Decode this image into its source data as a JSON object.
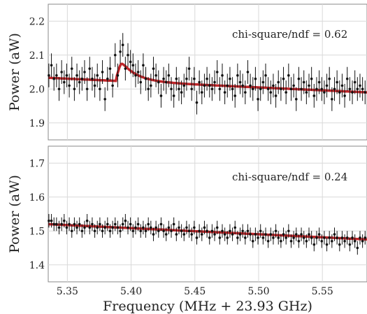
{
  "chart_data": [
    {
      "type": "scatter",
      "title": "",
      "xlabel": "",
      "ylabel": "Power (aW)",
      "xlim": [
        5.335,
        5.585
      ],
      "ylim": [
        1.85,
        2.25
      ],
      "yticks": [
        1.9,
        2.0,
        2.1,
        2.2
      ],
      "ytick_labels": [
        "1.9",
        "2.0",
        "2.1",
        "2.2"
      ],
      "xticks": [
        5.35,
        5.4,
        5.45,
        5.5,
        5.55
      ],
      "grid": true,
      "annotation": "chi-square/ndf = 0.62",
      "colors": {
        "points": "#111111",
        "fit": "#c0262a",
        "grid": "#d9d9d9",
        "frame": "#888888"
      },
      "points": {
        "x": [
          5.3355,
          5.3375,
          5.3395,
          5.3415,
          5.3435,
          5.3455,
          5.3475,
          5.3495,
          5.3515,
          5.3535,
          5.3555,
          5.3575,
          5.3595,
          5.3615,
          5.3635,
          5.3655,
          5.3675,
          5.3695,
          5.3715,
          5.3735,
          5.3755,
          5.3775,
          5.3795,
          5.3815,
          5.3835,
          5.3855,
          5.3875,
          5.3895,
          5.3915,
          5.3935,
          5.3955,
          5.3975,
          5.3995,
          5.4015,
          5.4035,
          5.4055,
          5.4075,
          5.4095,
          5.4115,
          5.4135,
          5.4155,
          5.4175,
          5.4195,
          5.4215,
          5.4235,
          5.4255,
          5.4275,
          5.4295,
          5.4315,
          5.4335,
          5.4355,
          5.4375,
          5.4395,
          5.4415,
          5.4435,
          5.4455,
          5.4475,
          5.4495,
          5.4515,
          5.4535,
          5.4555,
          5.4575,
          5.4595,
          5.4615,
          5.4635,
          5.4655,
          5.4675,
          5.4695,
          5.4715,
          5.4735,
          5.4755,
          5.4775,
          5.4795,
          5.4815,
          5.4835,
          5.4855,
          5.4875,
          5.4895,
          5.4915,
          5.4935,
          5.4955,
          5.4975,
          5.4995,
          5.5015,
          5.5035,
          5.5055,
          5.5075,
          5.5095,
          5.5115,
          5.5135,
          5.5155,
          5.5175,
          5.5195,
          5.5215,
          5.5235,
          5.5255,
          5.5275,
          5.5295,
          5.5315,
          5.5335,
          5.5355,
          5.5375,
          5.5395,
          5.5415,
          5.5435,
          5.5455,
          5.5475,
          5.5495,
          5.5515,
          5.5535,
          5.5555,
          5.5575,
          5.5595,
          5.5615,
          5.5635,
          5.5655,
          5.5675,
          5.5695,
          5.5715,
          5.5735,
          5.5755,
          5.5775,
          5.5795,
          5.5815,
          5.5835
        ],
        "y": [
          2.04,
          2.07,
          2.03,
          2.04,
          2.0,
          2.05,
          2.02,
          2.04,
          2.01,
          2.06,
          2.0,
          2.04,
          2.02,
          2.03,
          2.05,
          2.0,
          2.06,
          2.03,
          2.01,
          2.04,
          2.0,
          2.05,
          1.97,
          2.03,
          2.06,
          2.01,
          2.1,
          2.04,
          2.11,
          2.13,
          2.06,
          2.1,
          2.08,
          2.07,
          2.04,
          2.05,
          2.02,
          2.07,
          2.03,
          2.0,
          2.01,
          2.06,
          2.04,
          2.02,
          1.98,
          2.03,
          2.02,
          2.04,
          2.0,
          1.98,
          2.03,
          2.0,
          1.99,
          2.01,
          2.03,
          2.06,
          2.0,
          2.03,
          1.96,
          2.02,
          1.99,
          2.01,
          2.03,
          2.01,
          2.0,
          2.02,
          2.05,
          2.0,
          2.04,
          1.99,
          2.01,
          2.03,
          2.0,
          1.98,
          2.04,
          2.02,
          2.01,
          1.99,
          2.05,
          2.01,
          2.0,
          2.03,
          1.97,
          2.0,
          2.02,
          2.04,
          2.0,
          1.99,
          2.01,
          1.98,
          2.02,
          2.0,
          2.03,
          1.99,
          2.04,
          2.0,
          2.01,
          1.97,
          2.03,
          2.0,
          2.02,
          1.99,
          2.01,
          2.03,
          1.98,
          2.0,
          2.02,
          2.0,
          1.99,
          2.01,
          2.03,
          1.97,
          2.0,
          2.02,
          1.99,
          2.01,
          1.98,
          2.03,
          2.0,
          1.99,
          2.02,
          2.0,
          2.01,
          2.0,
          1.99
        ],
        "yerr": 0.035
      },
      "fit": {
        "baseline_start": 2.033,
        "baseline_end": 1.99,
        "peak_center": 5.392,
        "peak_height": 0.06,
        "peak_width": 0.012
      }
    },
    {
      "type": "scatter",
      "title": "",
      "xlabel": "Frequency (MHz + 23.93 GHz)",
      "ylabel": "Power (aW)",
      "xlim": [
        5.335,
        5.585
      ],
      "ylim": [
        1.35,
        1.75
      ],
      "yticks": [
        1.4,
        1.5,
        1.6,
        1.7
      ],
      "ytick_labels": [
        "1.4",
        "1.5",
        "1.6",
        "1.7"
      ],
      "xticks": [
        5.35,
        5.4,
        5.45,
        5.5,
        5.55
      ],
      "xtick_labels": [
        "5.35",
        "5.40",
        "5.45",
        "5.50",
        "5.55"
      ],
      "grid": true,
      "annotation": "chi-square/ndf = 0.24",
      "colors": {
        "points": "#111111",
        "fit": "#c0262a",
        "grid": "#d9d9d9",
        "frame": "#888888"
      },
      "points": {
        "x": [
          5.3355,
          5.3375,
          5.3395,
          5.3415,
          5.3435,
          5.3455,
          5.3475,
          5.3495,
          5.3515,
          5.3535,
          5.3555,
          5.3575,
          5.3595,
          5.3615,
          5.3635,
          5.3655,
          5.3675,
          5.3695,
          5.3715,
          5.3735,
          5.3755,
          5.3775,
          5.3795,
          5.3815,
          5.3835,
          5.3855,
          5.3875,
          5.3895,
          5.3915,
          5.3935,
          5.3955,
          5.3975,
          5.3995,
          5.4015,
          5.4035,
          5.4055,
          5.4075,
          5.4095,
          5.4115,
          5.4135,
          5.4155,
          5.4175,
          5.4195,
          5.4215,
          5.4235,
          5.4255,
          5.4275,
          5.4295,
          5.4315,
          5.4335,
          5.4355,
          5.4375,
          5.4395,
          5.4415,
          5.4435,
          5.4455,
          5.4475,
          5.4495,
          5.4515,
          5.4535,
          5.4555,
          5.4575,
          5.4595,
          5.4615,
          5.4635,
          5.4655,
          5.4675,
          5.4695,
          5.4715,
          5.4735,
          5.4755,
          5.4775,
          5.4795,
          5.4815,
          5.4835,
          5.4855,
          5.4875,
          5.4895,
          5.4915,
          5.4935,
          5.4955,
          5.4975,
          5.4995,
          5.5015,
          5.5035,
          5.5055,
          5.5075,
          5.5095,
          5.5115,
          5.5135,
          5.5155,
          5.5175,
          5.5195,
          5.5215,
          5.5235,
          5.5255,
          5.5275,
          5.5295,
          5.5315,
          5.5335,
          5.5355,
          5.5375,
          5.5395,
          5.5415,
          5.5435,
          5.5455,
          5.5475,
          5.5495,
          5.5515,
          5.5535,
          5.5555,
          5.5575,
          5.5595,
          5.5615,
          5.5635,
          5.5655,
          5.5675,
          5.5695,
          5.5715,
          5.5735,
          5.5755,
          5.5775,
          5.5795,
          5.5815,
          5.5835
        ],
        "y": [
          1.53,
          1.53,
          1.52,
          1.52,
          1.51,
          1.52,
          1.53,
          1.51,
          1.52,
          1.5,
          1.52,
          1.51,
          1.52,
          1.5,
          1.51,
          1.53,
          1.51,
          1.52,
          1.5,
          1.51,
          1.52,
          1.5,
          1.51,
          1.52,
          1.5,
          1.51,
          1.52,
          1.51,
          1.5,
          1.52,
          1.53,
          1.51,
          1.52,
          1.5,
          1.51,
          1.52,
          1.5,
          1.51,
          1.5,
          1.52,
          1.51,
          1.49,
          1.51,
          1.5,
          1.52,
          1.5,
          1.49,
          1.51,
          1.5,
          1.52,
          1.49,
          1.51,
          1.5,
          1.49,
          1.51,
          1.5,
          1.49,
          1.51,
          1.48,
          1.5,
          1.49,
          1.51,
          1.5,
          1.48,
          1.5,
          1.49,
          1.51,
          1.48,
          1.5,
          1.49,
          1.48,
          1.5,
          1.49,
          1.51,
          1.48,
          1.49,
          1.5,
          1.48,
          1.5,
          1.49,
          1.47,
          1.49,
          1.48,
          1.5,
          1.48,
          1.49,
          1.47,
          1.49,
          1.48,
          1.5,
          1.48,
          1.47,
          1.49,
          1.48,
          1.5,
          1.47,
          1.48,
          1.49,
          1.47,
          1.49,
          1.48,
          1.47,
          1.49,
          1.48,
          1.46,
          1.48,
          1.49,
          1.47,
          1.48,
          1.46,
          1.48,
          1.47,
          1.49,
          1.48,
          1.46,
          1.48,
          1.47,
          1.48,
          1.46,
          1.48,
          1.47,
          1.45,
          1.48,
          1.47,
          1.48
        ],
        "yerr": 0.02
      },
      "fit": {
        "baseline_start": 1.52,
        "baseline_end": 1.475,
        "peak_center": null,
        "peak_height": 0,
        "peak_width": 0
      }
    }
  ]
}
